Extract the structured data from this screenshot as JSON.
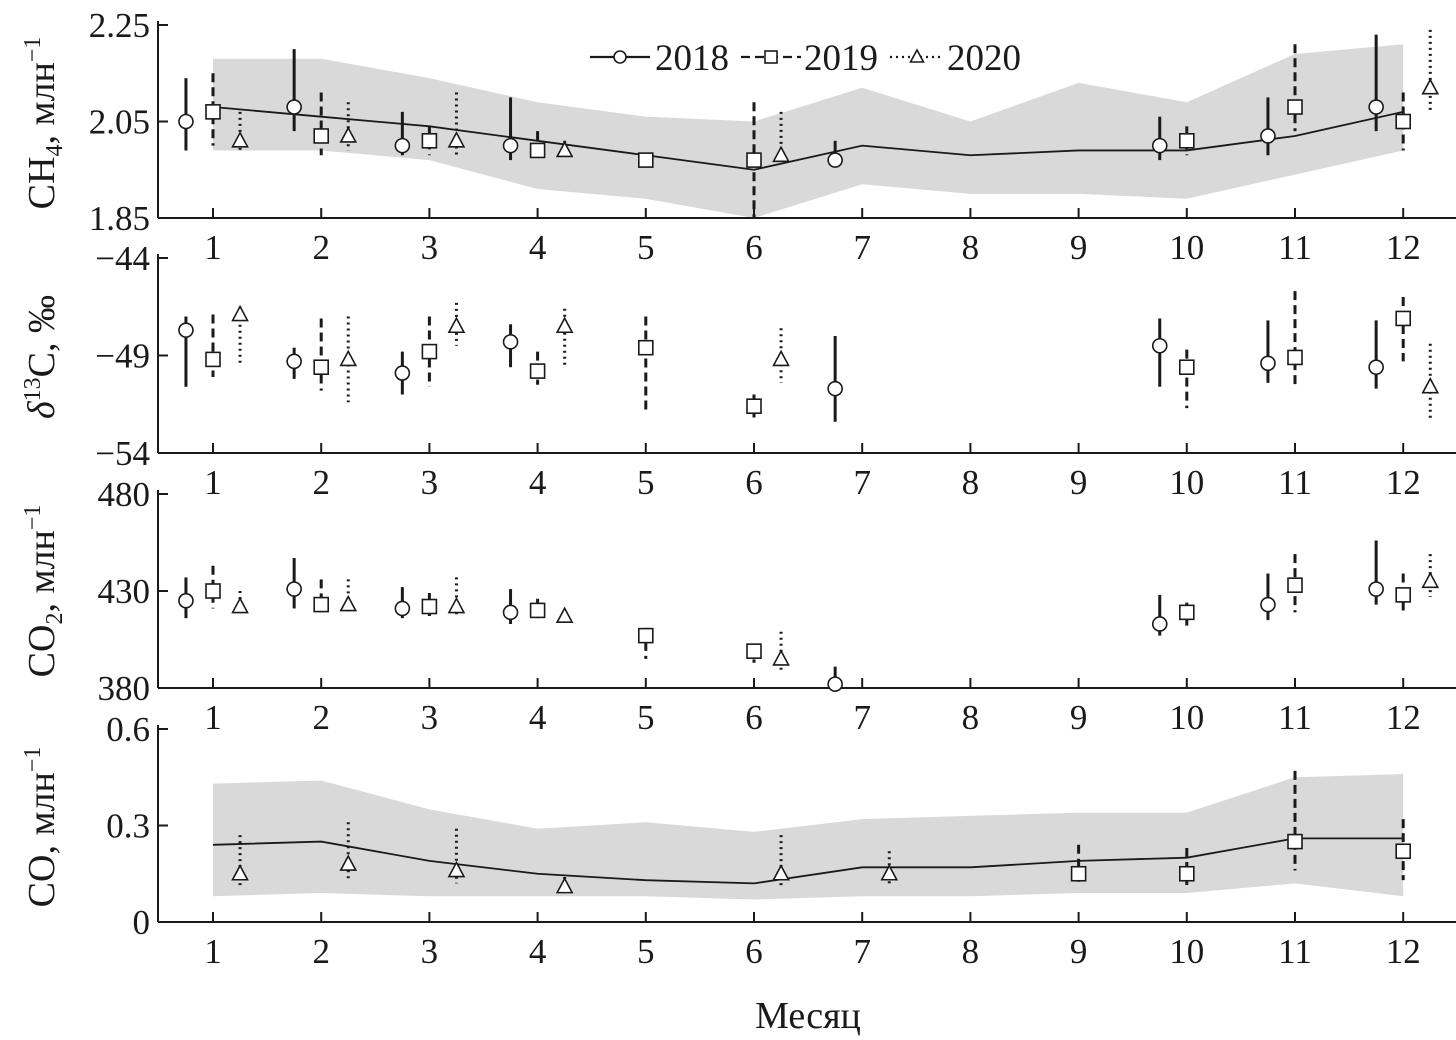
{
  "figure": {
    "xlabel": "Месяц",
    "months": [
      1,
      2,
      3,
      4,
      5,
      6,
      7,
      8,
      9,
      10,
      11,
      12
    ],
    "colors": {
      "ink": "#1a1a1a",
      "band": "#d9d9d9"
    }
  },
  "legend": {
    "placement": "top-center",
    "entries": [
      {
        "label": "2018",
        "marker": "circle",
        "line": "solid"
      },
      {
        "label": "2019",
        "marker": "square",
        "line": "dashed"
      },
      {
        "label": "2020",
        "marker": "triangle",
        "line": "dotted"
      }
    ]
  },
  "chart_data": [
    {
      "id": "ch4",
      "type": "scatter",
      "ylabel": {
        "main": "CH",
        "sub": "4",
        "rest": ", млн",
        "sup": "−1"
      },
      "ylim": [
        1.85,
        2.25
      ],
      "yticks": [
        "1.85",
        "2.05",
        "2.25"
      ],
      "ytick_values": [
        1.85,
        2.05,
        2.25
      ],
      "band": {
        "x": [
          1,
          2,
          3,
          4,
          5,
          6,
          7,
          8,
          9,
          10,
          11,
          12
        ],
        "low": [
          1.99,
          1.99,
          1.97,
          1.91,
          1.89,
          1.85,
          1.92,
          1.9,
          1.9,
          1.89,
          1.94,
          1.99
        ],
        "high": [
          2.18,
          2.18,
          2.14,
          2.09,
          2.06,
          2.05,
          2.12,
          2.05,
          2.13,
          2.09,
          2.19,
          2.21
        ]
      },
      "mean_line": {
        "x": [
          1,
          2,
          3,
          4,
          5,
          6,
          7,
          8,
          9,
          10,
          11,
          12
        ],
        "y": [
          2.08,
          2.06,
          2.04,
          2.01,
          1.98,
          1.95,
          2.0,
          1.98,
          1.99,
          1.99,
          2.02,
          2.07
        ]
      },
      "series": [
        {
          "name": "2018",
          "points": [
            {
              "x": 0.75,
              "y": 2.05,
              "lo": 1.99,
              "hi": 2.14
            },
            {
              "x": 1.75,
              "y": 2.08,
              "lo": 2.03,
              "hi": 2.2
            },
            {
              "x": 2.75,
              "y": 2.0,
              "lo": 1.98,
              "hi": 2.07
            },
            {
              "x": 3.75,
              "y": 2.0,
              "lo": 1.97,
              "hi": 2.1
            },
            {
              "x": 6.75,
              "y": 1.97,
              "lo": 1.96,
              "hi": 2.01
            },
            {
              "x": 9.75,
              "y": 2.0,
              "lo": 1.97,
              "hi": 2.06
            },
            {
              "x": 10.75,
              "y": 2.02,
              "lo": 1.98,
              "hi": 2.1
            },
            {
              "x": 11.75,
              "y": 2.08,
              "lo": 2.03,
              "hi": 2.23
            }
          ]
        },
        {
          "name": "2019",
          "points": [
            {
              "x": 1,
              "y": 2.07,
              "lo": 2.0,
              "hi": 2.15
            },
            {
              "x": 2,
              "y": 2.02,
              "lo": 1.98,
              "hi": 2.11
            },
            {
              "x": 3,
              "y": 2.01,
              "lo": 1.98,
              "hi": 2.04
            },
            {
              "x": 4,
              "y": 1.99,
              "lo": 1.98,
              "hi": 2.03
            },
            {
              "x": 5,
              "y": 1.97,
              "lo": 1.96,
              "hi": 1.98
            },
            {
              "x": 6,
              "y": 1.97,
              "lo": 1.85,
              "hi": 2.09
            },
            {
              "x": 10,
              "y": 2.01,
              "lo": 1.98,
              "hi": 2.04
            },
            {
              "x": 11,
              "y": 2.08,
              "lo": 2.03,
              "hi": 2.21
            },
            {
              "x": 12,
              "y": 2.05,
              "lo": 1.99,
              "hi": 2.11
            }
          ]
        },
        {
          "name": "2020",
          "points": [
            {
              "x": 1.25,
              "y": 2.01,
              "lo": 1.99,
              "hi": 2.07
            },
            {
              "x": 2.25,
              "y": 2.02,
              "lo": 1.99,
              "hi": 2.09
            },
            {
              "x": 3.25,
              "y": 2.01,
              "lo": 1.98,
              "hi": 2.11
            },
            {
              "x": 4.25,
              "y": 1.99,
              "lo": 1.98,
              "hi": 2.01
            },
            {
              "x": 6.25,
              "y": 1.98,
              "lo": 1.96,
              "hi": 2.07
            },
            {
              "x": 12.25,
              "y": 2.12,
              "lo": 2.07,
              "hi": 2.24
            }
          ]
        }
      ]
    },
    {
      "id": "d13c",
      "type": "scatter",
      "ylabel": {
        "main": "δ",
        "sup": "13",
        "rest": "C, ‰"
      },
      "ylim": [
        -54,
        -44
      ],
      "yticks": [
        "−54",
        "−49",
        "−44"
      ],
      "ytick_values": [
        -54,
        -49,
        -44
      ],
      "series": [
        {
          "name": "2018",
          "points": [
            {
              "x": 0.75,
              "y": -47.7,
              "lo": -50.6,
              "hi": -47.0
            },
            {
              "x": 1.75,
              "y": -49.3,
              "lo": -50.2,
              "hi": -48.6
            },
            {
              "x": 2.75,
              "y": -49.9,
              "lo": -51.0,
              "hi": -48.8
            },
            {
              "x": 3.75,
              "y": -48.3,
              "lo": -49.6,
              "hi": -47.4
            },
            {
              "x": 6.75,
              "y": -50.7,
              "lo": -52.4,
              "hi": -48.0
            },
            {
              "x": 9.75,
              "y": -48.5,
              "lo": -50.6,
              "hi": -47.1
            },
            {
              "x": 10.75,
              "y": -49.4,
              "lo": -50.4,
              "hi": -47.2
            },
            {
              "x": 11.75,
              "y": -49.6,
              "lo": -50.7,
              "hi": -47.2
            }
          ]
        },
        {
          "name": "2019",
          "points": [
            {
              "x": 1,
              "y": -49.2,
              "lo": -50.1,
              "hi": -46.9
            },
            {
              "x": 2,
              "y": -49.6,
              "lo": -50.8,
              "hi": -47.1
            },
            {
              "x": 3,
              "y": -48.8,
              "lo": -50.6,
              "hi": -47.0
            },
            {
              "x": 4,
              "y": -49.8,
              "lo": -50.5,
              "hi": -48.8
            },
            {
              "x": 5,
              "y": -48.6,
              "lo": -52.0,
              "hi": -47.0
            },
            {
              "x": 6,
              "y": -51.6,
              "lo": -52.2,
              "hi": -51.0
            },
            {
              "x": 10,
              "y": -49.6,
              "lo": -51.7,
              "hi": -48.7
            },
            {
              "x": 11,
              "y": -49.1,
              "lo": -50.7,
              "hi": -45.7
            },
            {
              "x": 12,
              "y": -47.1,
              "lo": -49.3,
              "hi": -46.0
            }
          ]
        },
        {
          "name": "2020",
          "points": [
            {
              "x": 1.25,
              "y": -46.9,
              "lo": -49.4,
              "hi": -46.5
            },
            {
              "x": 2.25,
              "y": -49.2,
              "lo": -51.4,
              "hi": -47.0
            },
            {
              "x": 3.25,
              "y": -47.5,
              "lo": -48.5,
              "hi": -46.3
            },
            {
              "x": 4.25,
              "y": -47.5,
              "lo": -49.5,
              "hi": -46.6
            },
            {
              "x": 6.25,
              "y": -49.2,
              "lo": -50.4,
              "hi": -47.6
            },
            {
              "x": 12.25,
              "y": -50.6,
              "lo": -52.4,
              "hi": -48.4
            }
          ]
        }
      ]
    },
    {
      "id": "co2",
      "type": "scatter",
      "ylabel": {
        "main": "CO",
        "sub": "2",
        "rest": ", млн",
        "sup": "−1"
      },
      "ylim": [
        380,
        480
      ],
      "yticks": [
        "380",
        "430",
        "480"
      ],
      "ytick_values": [
        380,
        430,
        480
      ],
      "series": [
        {
          "name": "2018",
          "points": [
            {
              "x": 0.75,
              "y": 425,
              "lo": 416,
              "hi": 437
            },
            {
              "x": 1.75,
              "y": 431,
              "lo": 421,
              "hi": 447
            },
            {
              "x": 2.75,
              "y": 421,
              "lo": 416,
              "hi": 432
            },
            {
              "x": 3.75,
              "y": 419,
              "lo": 413,
              "hi": 431
            },
            {
              "x": 6.75,
              "y": 382,
              "lo": 378,
              "hi": 391
            },
            {
              "x": 9.75,
              "y": 413,
              "lo": 407,
              "hi": 428
            },
            {
              "x": 10.75,
              "y": 423,
              "lo": 415,
              "hi": 439
            },
            {
              "x": 11.75,
              "y": 431,
              "lo": 423,
              "hi": 456
            }
          ]
        },
        {
          "name": "2019",
          "points": [
            {
              "x": 1,
              "y": 430,
              "lo": 421,
              "hi": 443
            },
            {
              "x": 2,
              "y": 423,
              "lo": 419,
              "hi": 436
            },
            {
              "x": 3,
              "y": 422,
              "lo": 416,
              "hi": 429
            },
            {
              "x": 4,
              "y": 420,
              "lo": 416,
              "hi": 426
            },
            {
              "x": 5,
              "y": 407,
              "lo": 395,
              "hi": 411
            },
            {
              "x": 6,
              "y": 399,
              "lo": 393,
              "hi": 402
            },
            {
              "x": 10,
              "y": 419,
              "lo": 412,
              "hi": 424
            },
            {
              "x": 11,
              "y": 433,
              "lo": 419,
              "hi": 449
            },
            {
              "x": 12,
              "y": 428,
              "lo": 419,
              "hi": 439
            }
          ]
        },
        {
          "name": "2020",
          "points": [
            {
              "x": 1.25,
              "y": 422,
              "lo": 418,
              "hi": 430
            },
            {
              "x": 2.25,
              "y": 423,
              "lo": 419,
              "hi": 436
            },
            {
              "x": 3.25,
              "y": 422,
              "lo": 418,
              "hi": 437
            },
            {
              "x": 4.25,
              "y": 417,
              "lo": 415,
              "hi": 420
            },
            {
              "x": 6.25,
              "y": 395,
              "lo": 389,
              "hi": 409
            },
            {
              "x": 12.25,
              "y": 435,
              "lo": 427,
              "hi": 449
            }
          ]
        }
      ]
    },
    {
      "id": "co",
      "type": "scatter",
      "ylabel": {
        "main": "CO, млн",
        "sup": "−1"
      },
      "ylim": [
        0,
        0.6
      ],
      "yticks": [
        "0",
        "0.3",
        "0.6"
      ],
      "ytick_values": [
        0,
        0.3,
        0.6
      ],
      "band": {
        "x": [
          1,
          2,
          3,
          4,
          5,
          6,
          7,
          8,
          9,
          10,
          11,
          12
        ],
        "low": [
          0.08,
          0.09,
          0.08,
          0.08,
          0.08,
          0.07,
          0.08,
          0.08,
          0.09,
          0.09,
          0.12,
          0.08
        ],
        "high": [
          0.43,
          0.44,
          0.35,
          0.29,
          0.31,
          0.28,
          0.32,
          0.33,
          0.34,
          0.34,
          0.45,
          0.46
        ]
      },
      "mean_line": {
        "x": [
          1,
          2,
          3,
          4,
          5,
          6,
          7,
          8,
          9,
          10,
          11,
          12
        ],
        "y": [
          0.24,
          0.25,
          0.19,
          0.15,
          0.13,
          0.12,
          0.17,
          0.17,
          0.19,
          0.2,
          0.26,
          0.26
        ]
      },
      "series": [
        {
          "name": "2019",
          "points": [
            {
              "x": 9,
              "y": 0.15,
              "lo": 0.11,
              "hi": 0.24
            },
            {
              "x": 10,
              "y": 0.15,
              "lo": 0.11,
              "hi": 0.23
            },
            {
              "x": 11,
              "y": 0.25,
              "lo": 0.16,
              "hi": 0.47
            },
            {
              "x": 12,
              "y": 0.22,
              "lo": 0.13,
              "hi": 0.32
            }
          ]
        },
        {
          "name": "2020",
          "points": [
            {
              "x": 1.25,
              "y": 0.15,
              "lo": 0.11,
              "hi": 0.27
            },
            {
              "x": 2.25,
              "y": 0.18,
              "lo": 0.13,
              "hi": 0.31
            },
            {
              "x": 3.25,
              "y": 0.16,
              "lo": 0.12,
              "hi": 0.29
            },
            {
              "x": 4.25,
              "y": 0.11,
              "lo": 0.09,
              "hi": 0.14
            },
            {
              "x": 6.25,
              "y": 0.15,
              "lo": 0.11,
              "hi": 0.27
            },
            {
              "x": 7.25,
              "y": 0.15,
              "lo": 0.11,
              "hi": 0.22
            }
          ]
        }
      ]
    }
  ]
}
